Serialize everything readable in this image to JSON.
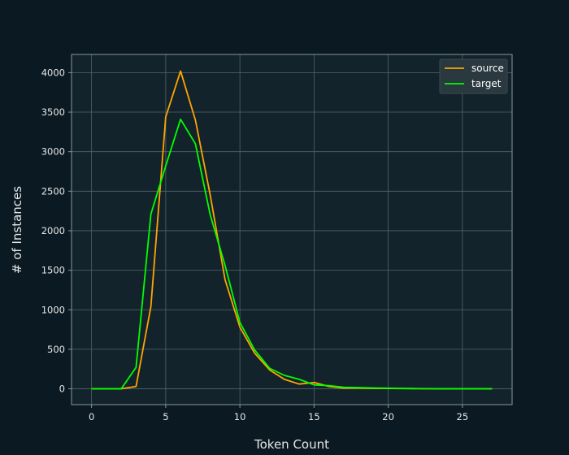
{
  "chart_data": {
    "type": "line",
    "title": "",
    "xlabel": "Token Count",
    "ylabel": "# of Instances",
    "xlim": [
      -1.35,
      28.35
    ],
    "ylim": [
      -200,
      4230
    ],
    "xticks": [
      0,
      5,
      10,
      15,
      20,
      25
    ],
    "yticks": [
      0,
      500,
      1000,
      1500,
      2000,
      2500,
      3000,
      3500,
      4000
    ],
    "grid": true,
    "legend": "top-right",
    "x": [
      0,
      1,
      2,
      3,
      4,
      5,
      6,
      7,
      8,
      9,
      10,
      11,
      12,
      13,
      14,
      15,
      16,
      17,
      18,
      19,
      20,
      21,
      22,
      23,
      24,
      25,
      26,
      27
    ],
    "series": [
      {
        "name": "source",
        "color": "#ffa500",
        "values": [
          0,
          0,
          0,
          30,
          1040,
          3440,
          4020,
          3400,
          2450,
          1380,
          780,
          450,
          240,
          120,
          60,
          80,
          30,
          10,
          10,
          5,
          5,
          3,
          2,
          1,
          1,
          1,
          1,
          1
        ]
      },
      {
        "name": "target",
        "color": "#00ff00",
        "values": [
          0,
          0,
          0,
          270,
          2210,
          2820,
          3410,
          3100,
          2200,
          1560,
          840,
          490,
          260,
          170,
          120,
          50,
          40,
          20,
          15,
          10,
          8,
          5,
          3,
          2,
          1,
          1,
          1,
          1
        ]
      }
    ]
  }
}
